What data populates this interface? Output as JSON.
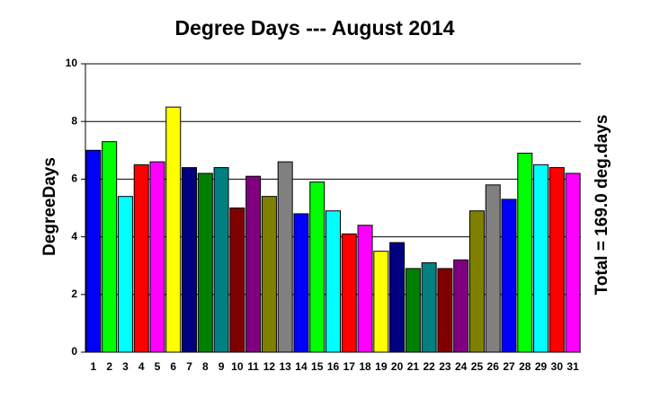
{
  "chart_data": {
    "type": "bar",
    "title": "Degree Days --- August 2014",
    "y_label": "DegreeDays",
    "annotation": "Total = 169.0 deg.days",
    "categories": [
      "1",
      "2",
      "3",
      "4",
      "5",
      "6",
      "7",
      "8",
      "9",
      "10",
      "11",
      "12",
      "13",
      "14",
      "15",
      "16",
      "17",
      "18",
      "19",
      "20",
      "21",
      "22",
      "23",
      "24",
      "25",
      "26",
      "27",
      "28",
      "29",
      "30",
      "31"
    ],
    "values": [
      7.0,
      7.3,
      5.4,
      6.5,
      6.6,
      8.5,
      6.4,
      6.2,
      6.4,
      5.0,
      6.1,
      5.4,
      6.6,
      4.8,
      5.9,
      4.9,
      4.1,
      4.4,
      3.5,
      3.8,
      2.9,
      3.1,
      2.9,
      3.2,
      4.9,
      5.8,
      5.3,
      6.9,
      6.5,
      6.4,
      6.2
    ],
    "colors": [
      "#0000ff",
      "#00ff00",
      "#00ffff",
      "#ff0000",
      "#ff00ff",
      "#ffff00",
      "#000080",
      "#008000",
      "#008080",
      "#800000",
      "#800080",
      "#808000",
      "#808080",
      "#0000ff",
      "#00ff00",
      "#00ffff",
      "#ff0000",
      "#ff00ff",
      "#ffff00",
      "#000080",
      "#008000",
      "#008080",
      "#800000",
      "#800080",
      "#808000",
      "#808080",
      "#0000ff",
      "#00ff00",
      "#00ffff",
      "#ff0000",
      "#ff00ff"
    ],
    "ylim": [
      0,
      10
    ],
    "yticks": [
      0,
      2,
      4,
      6,
      8,
      10
    ],
    "grid": true
  }
}
